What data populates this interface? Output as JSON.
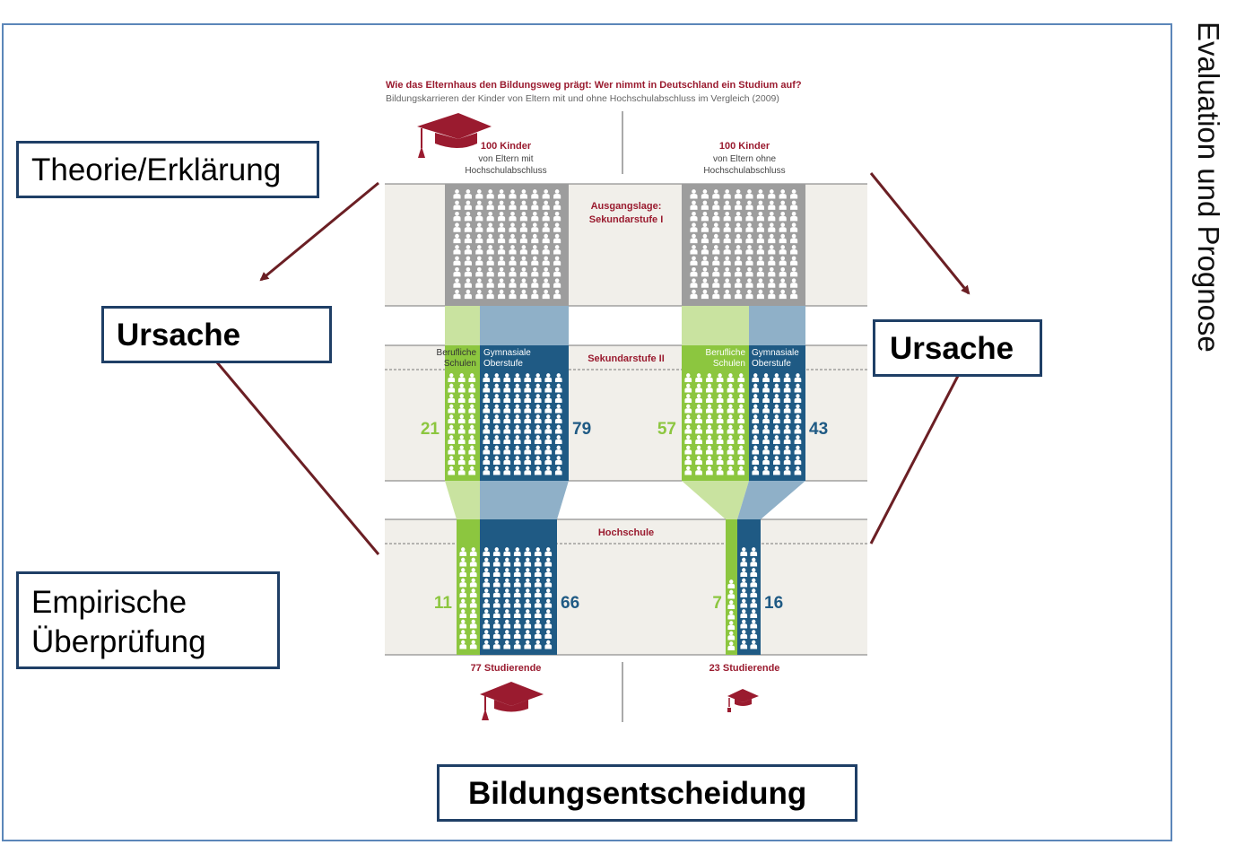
{
  "labels": {
    "side_title": "Evaluation und Prognose",
    "theorie": "Theorie/Erklärung",
    "ursache_left": "Ursache",
    "ursache_right": "Ursache",
    "empirisch_line1": "Empirische",
    "empirisch_line2": "Überprüfung",
    "bildungsentscheidung": "Bildungsentscheidung"
  },
  "infographic": {
    "title": "Wie das Elternhaus den Bildungsweg prägt: Wer nimmt in Deutschland ein Studium auf?",
    "subtitle": "Bildungskarrieren der Kinder von Eltern mit und ohne Hochschulabschluss im Vergleich (2009)",
    "left_header": [
      "100 Kinder",
      "von Eltern mit",
      "Hochschulabschluss"
    ],
    "right_header": [
      "100 Kinder",
      "von Eltern ohne",
      "Hochschulabschluss"
    ],
    "stage1": [
      "Ausgangslage:",
      "Sekundarstufe I"
    ],
    "stage2": "Sekundarstufe II",
    "stage3": "Hochschule",
    "berufliche": [
      "Berufliche",
      "Schulen"
    ],
    "gymnasiale": [
      "Gymnasiale",
      "Oberstufe"
    ],
    "left_sek2_beruf": "21",
    "left_sek2_gym": "79",
    "right_sek2_beruf": "57",
    "right_sek2_gym": "43",
    "left_hs_beruf": "11",
    "left_hs_gym": "66",
    "right_hs_beruf": "7",
    "right_hs_gym": "16",
    "left_total": "77 Studierende",
    "right_total": "23 Studierende"
  },
  "colors": {
    "frame": "#5b86b9",
    "box_border": "#1f3f66",
    "arrow": "#6b1f24",
    "title_red": "#9a1b2f",
    "green": "#8cc63f",
    "green_light": "#c9e3a0",
    "blue": "#1f5a84",
    "blue_light": "#8fb0c8",
    "gray": "#9d9d9d",
    "band": "#f1efea"
  }
}
